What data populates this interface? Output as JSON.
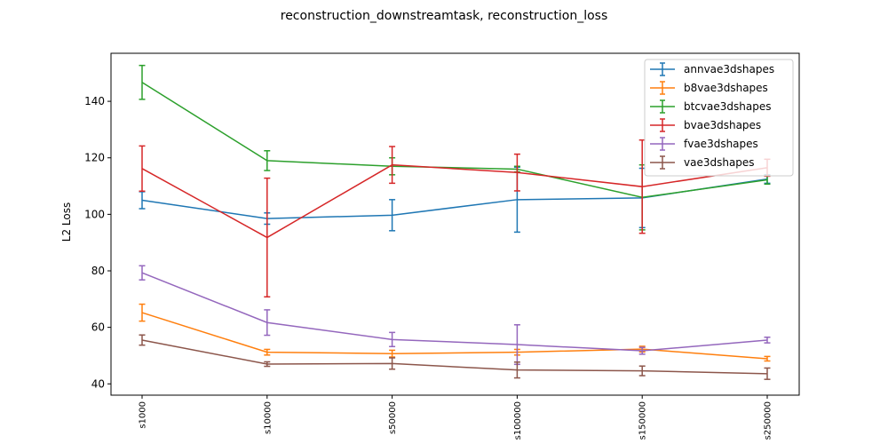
{
  "chart_data": {
    "type": "line",
    "title": "reconstruction_downstreamtask, reconstruction_loss",
    "xlabel": "",
    "ylabel": "L2 Loss",
    "categories": [
      "s1000",
      "s10000",
      "s50000",
      "s100000",
      "s150000",
      "s250000"
    ],
    "ylim": [
      36,
      157
    ],
    "yticks": [
      40,
      60,
      80,
      100,
      120,
      140
    ],
    "grid": false,
    "legend_position": "top-right",
    "series": [
      {
        "name": "annvae3dshapes",
        "color": "#1f77b4",
        "values": [
          105.0,
          98.5,
          99.7,
          105.2,
          105.8,
          112.5
        ],
        "errors": [
          3.0,
          2.0,
          5.5,
          11.5,
          10.5,
          1.5
        ]
      },
      {
        "name": "b8vae3dshapes",
        "color": "#ff7f0e",
        "values": [
          65.2,
          51.2,
          50.7,
          51.2,
          52.3,
          48.9
        ],
        "errors": [
          3.0,
          1.0,
          1.2,
          1.0,
          1.0,
          0.8
        ]
      },
      {
        "name": "btcvae3dshapes",
        "color": "#2ca02c",
        "values": [
          146.7,
          119.0,
          117.0,
          116.0,
          106.0,
          112.2
        ],
        "errors": [
          6.0,
          3.5,
          3.0,
          1.0,
          11.5,
          1.5
        ]
      },
      {
        "name": "bvae3dshapes",
        "color": "#d62728",
        "values": [
          116.2,
          91.8,
          117.5,
          114.8,
          109.8,
          116.5
        ],
        "errors": [
          8.0,
          21.0,
          6.5,
          6.5,
          16.5,
          3.0
        ]
      },
      {
        "name": "fvae3dshapes",
        "color": "#9467bd",
        "values": [
          79.3,
          61.7,
          55.7,
          53.9,
          51.7,
          55.5
        ],
        "errors": [
          2.5,
          4.5,
          2.5,
          7.0,
          1.2,
          1.0
        ]
      },
      {
        "name": "vae3dshapes",
        "color": "#8c564b",
        "values": [
          55.5,
          47.0,
          47.2,
          44.9,
          44.6,
          43.6
        ],
        "errors": [
          1.8,
          0.8,
          2.0,
          2.8,
          1.7,
          2.0
        ]
      }
    ]
  }
}
